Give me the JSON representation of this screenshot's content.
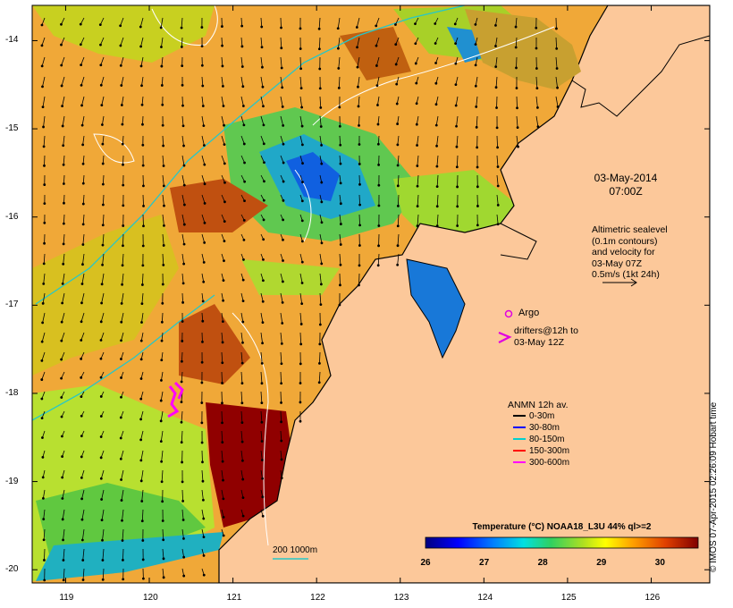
{
  "map": {
    "lon_ticks": [
      "119",
      "120",
      "121",
      "122",
      "123",
      "124",
      "125",
      "126"
    ],
    "lat_ticks": [
      "-14",
      "-15",
      "-16",
      "-17",
      "-18",
      "-19",
      "-20"
    ],
    "lon_range": [
      118.6,
      126.7
    ],
    "lat_range": [
      -20.15,
      -13.6
    ],
    "colors": {
      "land": "#fcc89a",
      "coast": "#000000",
      "contour": "#ffffff",
      "bathy": "#27c7c7"
    }
  },
  "annotations": {
    "date_line1": "03-May-2014",
    "date_line2": "07:00Z",
    "alt_line1": "Altimetric sealevel",
    "alt_line2": "(0.1m contours)",
    "alt_line3": "and velocity for",
    "alt_line4": "03-May 07Z",
    "alt_line5": "0.5m/s (1kt 24h)",
    "argo_label": "Argo",
    "drifters_line1": "drifters@12h to",
    "drifters_line2": "03-May 12Z",
    "anmn_title": "ANMN 12h av.",
    "anmn_items": [
      {
        "label": "0-30m",
        "color": "#000000"
      },
      {
        "label": "30-80m",
        "color": "#0000ff"
      },
      {
        "label": "80-150m",
        "color": "#00d0d0"
      },
      {
        "label": "150-300m",
        "color": "#ff0000"
      },
      {
        "label": "300-600m",
        "color": "#ff00ff"
      }
    ],
    "bathy_label": "200  1000m"
  },
  "colorbar": {
    "title": "Temperature (°C) NOAA18_L3U 44% ql>=2",
    "ticks": [
      "26",
      "27",
      "28",
      "29",
      "30"
    ],
    "range": [
      26,
      30.65
    ]
  },
  "credit": "© IMOS 07-Apr-2015 02:26:09 Hobart time"
}
